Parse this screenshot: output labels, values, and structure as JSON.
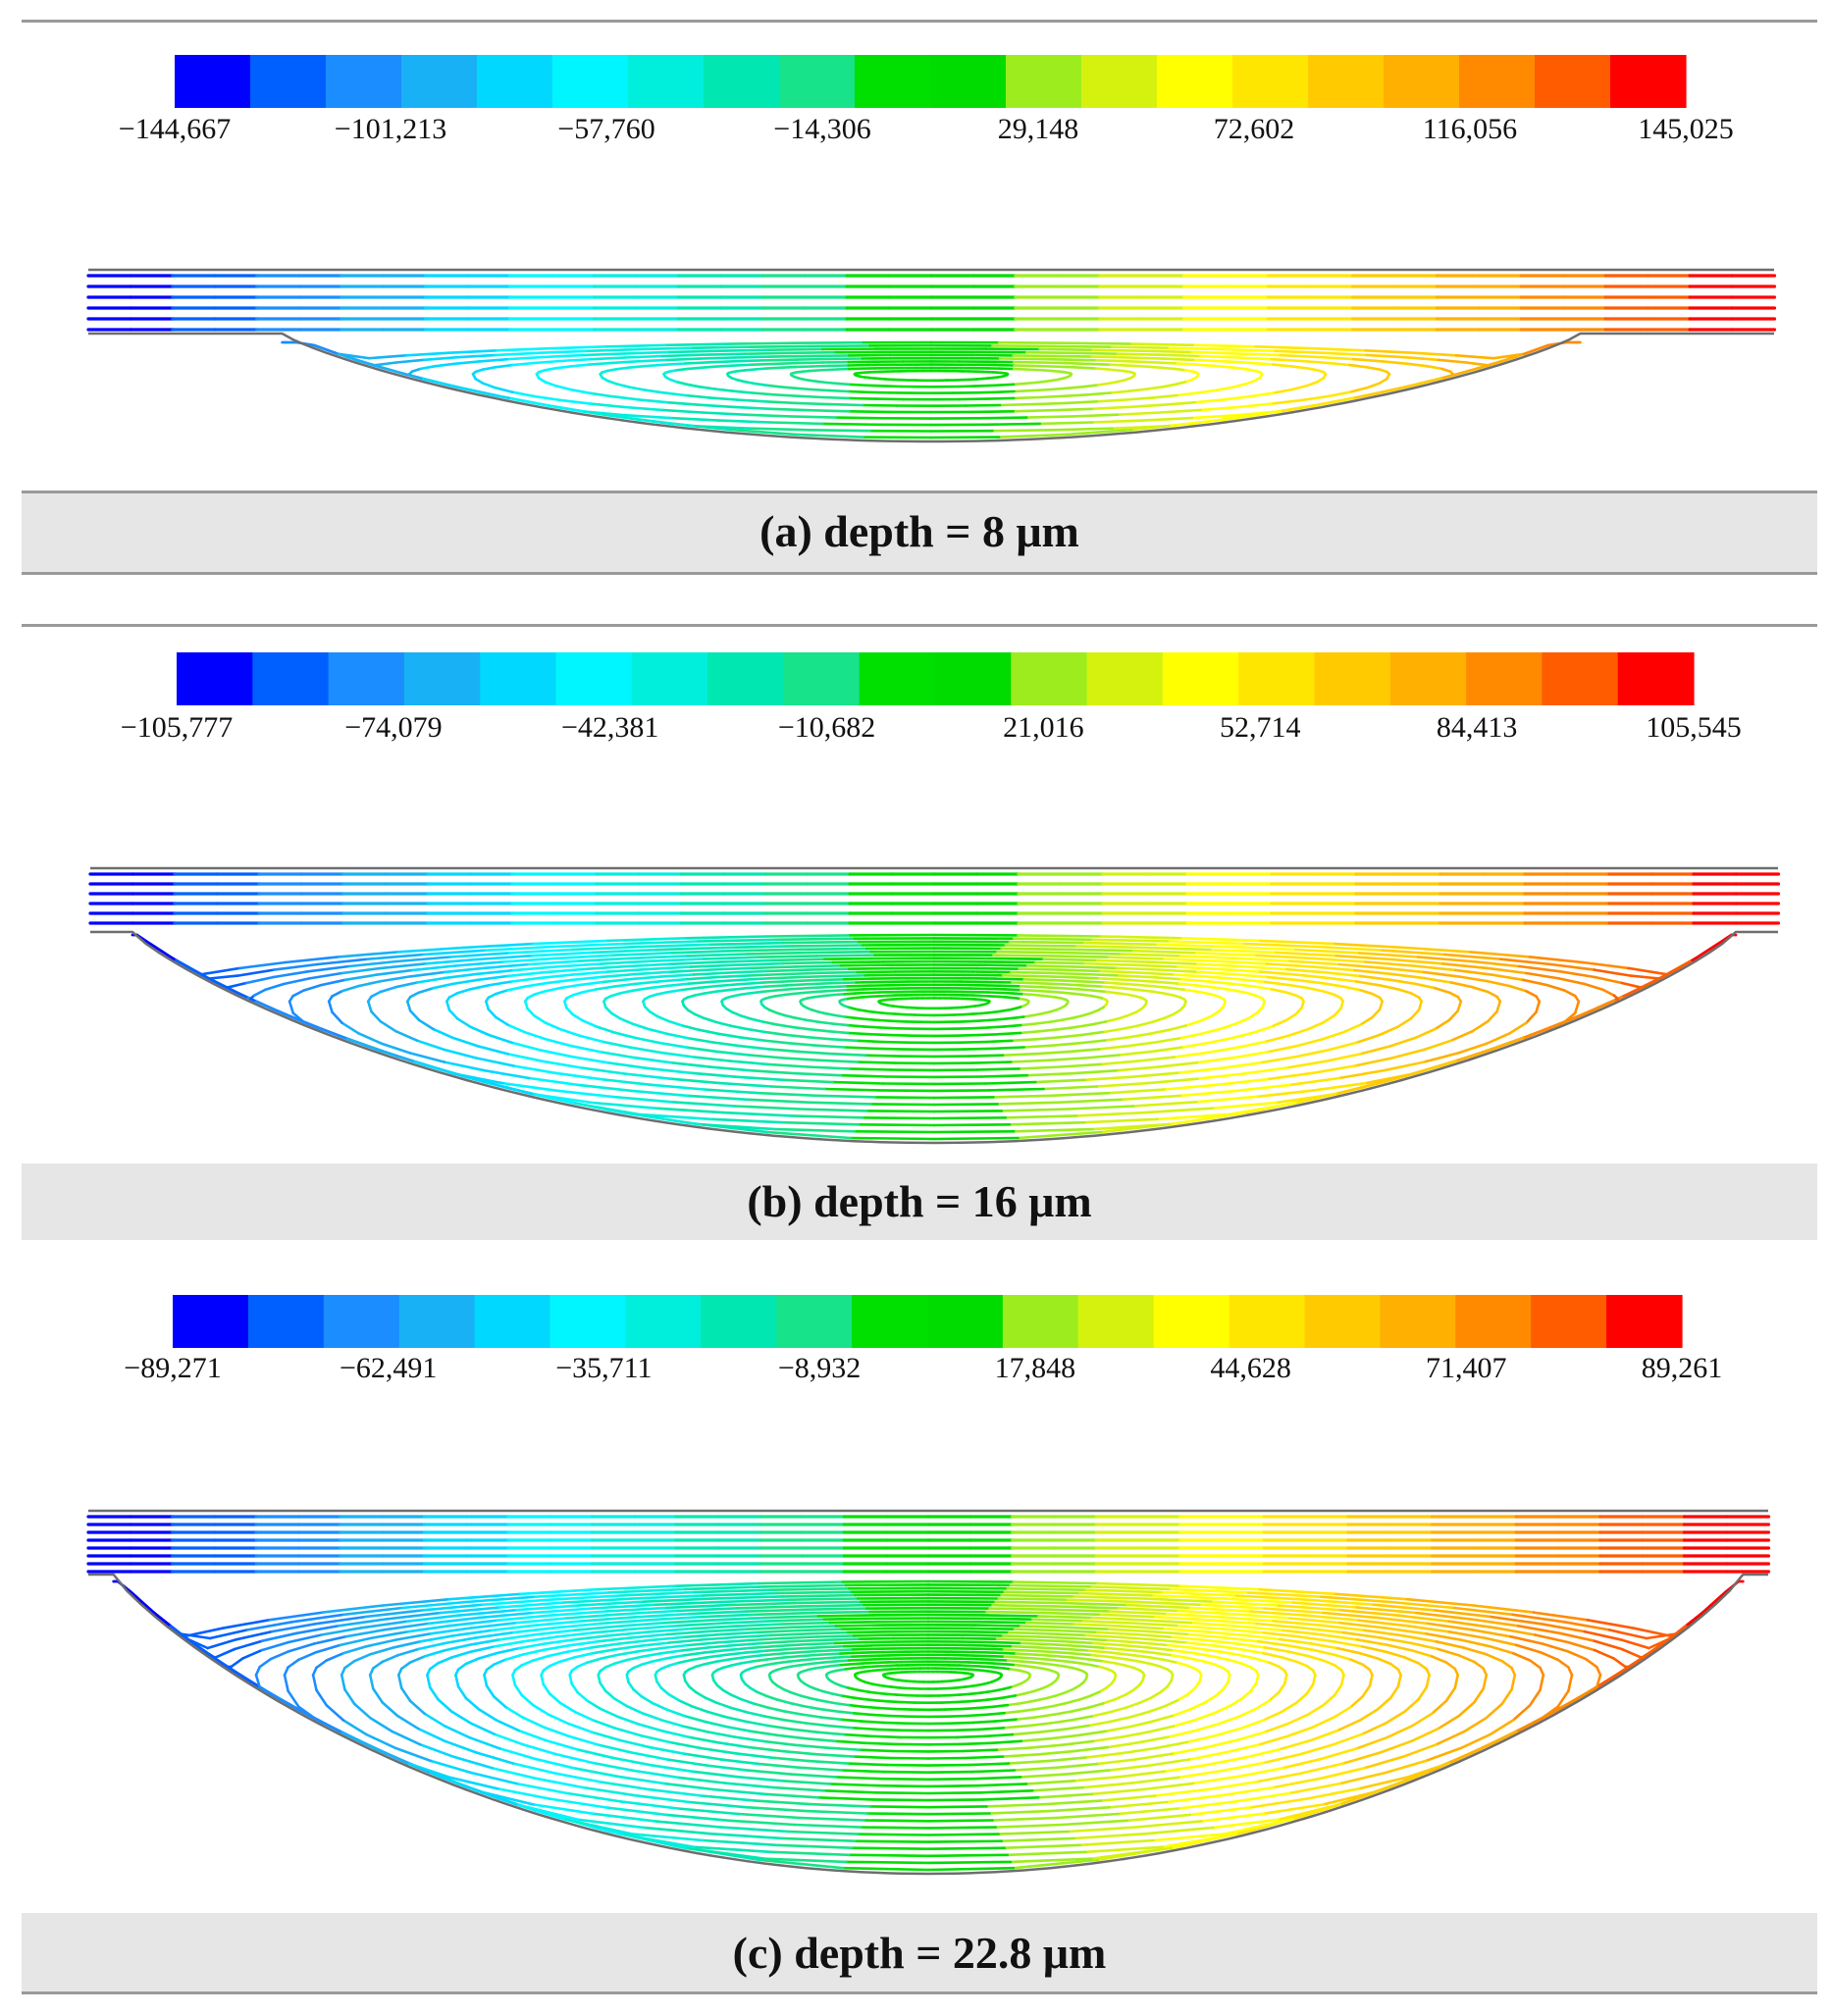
{
  "colorbar_colors": [
    "#0000ff",
    "#0060ff",
    "#1b8dff",
    "#19b1f5",
    "#00d8ff",
    "#00f6ff",
    "#00efdc",
    "#00e7b1",
    "#17e38a",
    "#00e000",
    "#00dc00",
    "#9ded1e",
    "#d5f20f",
    "#ffff00",
    "#ffe600",
    "#ffcb00",
    "#ffb000",
    "#ff8a00",
    "#ff5c00",
    "#ff0000"
  ],
  "panels": [
    {
      "caption": "(a) depth = 8 μm",
      "depth_um": 8,
      "colorbar_labels": [
        "−144,667",
        "−101,213",
        "−57,760",
        "−14,306",
        "29,148",
        "72,602",
        "116,056",
        "145,025"
      ],
      "value_min": -144667,
      "value_max": 145025
    },
    {
      "caption": "(b) depth = 16 μm",
      "depth_um": 16,
      "colorbar_labels": [
        "−105,777",
        "−74,079",
        "−42,381",
        "−10,682",
        "21,016",
        "52,714",
        "84,413",
        "105,545"
      ],
      "value_min": -105777,
      "value_max": 105545
    },
    {
      "caption": "(c) depth = 22.8 μm",
      "depth_um": 22.8,
      "colorbar_labels": [
        "−89,271",
        "−62,491",
        "−35,711",
        "−8,932",
        "17,848",
        "44,628",
        "71,407",
        "89,261"
      ],
      "value_min": -89271,
      "value_max": 89261
    }
  ]
}
